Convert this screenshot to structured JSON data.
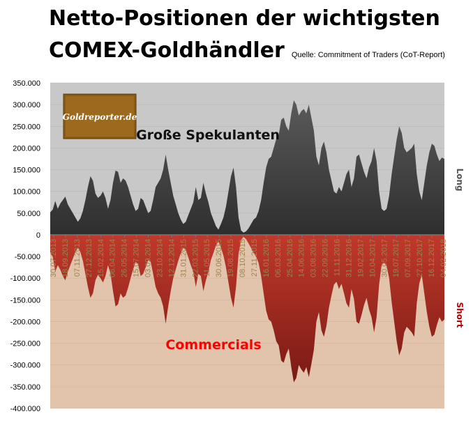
{
  "title_line1": "Netto-Positionen der wichtigsten",
  "title_line2": "COMEX-Goldhändler",
  "source": "Quelle: Commitment of Traders (CoT-Report)",
  "logo_text": "Goldreporter.de",
  "colors": {
    "top_bg": "#c8c8c8",
    "bottom_bg": "#e2c4ad",
    "spec_fill": "#3a3a3a",
    "comm_fill": "#a52a2a",
    "comm_label": "#ff0000",
    "short_label": "#c00000",
    "long_label": "#555555",
    "logo_bg": "#8b5a14",
    "tick_label": "#9a8450"
  },
  "chart_data": {
    "type": "area",
    "ylim": [
      -400000,
      350000
    ],
    "yticks": [
      "350.000",
      "300.000",
      "250.000",
      "200.000",
      "150.000",
      "100.000",
      "50.000",
      "0",
      "-50.000",
      "-100.000",
      "-150.000",
      "-200.000",
      "-250.000",
      "-300.000",
      "-350.000",
      "-400.000"
    ],
    "right_label_top": "Long",
    "right_label_bottom": "Short",
    "x_tick_labels": [
      "30.07.2013",
      "18.09.2013",
      "07.11.2013",
      "27.12.2013",
      "15.02.2014",
      "06.04.2014",
      "26.05.2014",
      "15.07.2014",
      "03.09.2014",
      "23.10.2014",
      "12.12.2014",
      "31.01.2015",
      "22.03.2015",
      "11.05.2015",
      "30.06.2015",
      "19.08.2015",
      "08.10.2015",
      "27.11.2015",
      "16.01.2016",
      "06.03.2016",
      "25.04.2016",
      "14.06.2016",
      "03.08.2016",
      "22.09.2016",
      "11.11.2016",
      "31.12.2016",
      "19.02.2017",
      "10.04.2017",
      "30.05.2017",
      "19.07.2017",
      "07.09.2017",
      "27.10.2017",
      "16.12.2017",
      "04.02.2018"
    ],
    "series": [
      {
        "name": "Große Spekulanten",
        "values": [
          52000,
          58000,
          78000,
          60000,
          72000,
          80000,
          88000,
          70000,
          60000,
          50000,
          40000,
          30000,
          38000,
          55000,
          80000,
          110000,
          135000,
          125000,
          95000,
          85000,
          90000,
          100000,
          85000,
          60000,
          80000,
          120000,
          148000,
          145000,
          120000,
          130000,
          125000,
          110000,
          90000,
          70000,
          55000,
          60000,
          85000,
          80000,
          65000,
          50000,
          55000,
          80000,
          110000,
          120000,
          130000,
          150000,
          185000,
          150000,
          120000,
          90000,
          70000,
          50000,
          35000,
          25000,
          30000,
          45000,
          60000,
          75000,
          110000,
          80000,
          85000,
          120000,
          95000,
          75000,
          50000,
          35000,
          20000,
          12000,
          25000,
          40000,
          65000,
          100000,
          135000,
          155000,
          110000,
          40000,
          10000,
          5000,
          8000,
          15000,
          25000,
          35000,
          40000,
          55000,
          80000,
          120000,
          155000,
          175000,
          180000,
          200000,
          220000,
          230000,
          265000,
          270000,
          250000,
          240000,
          280000,
          310000,
          300000,
          275000,
          285000,
          290000,
          280000,
          300000,
          270000,
          240000,
          180000,
          160000,
          200000,
          215000,
          190000,
          150000,
          125000,
          100000,
          95000,
          110000,
          100000,
          120000,
          140000,
          150000,
          110000,
          130000,
          180000,
          185000,
          165000,
          145000,
          130000,
          155000,
          170000,
          200000,
          170000,
          100000,
          60000,
          55000,
          60000,
          90000,
          140000,
          180000,
          220000,
          250000,
          235000,
          200000,
          190000,
          195000,
          200000,
          210000,
          140000,
          100000,
          80000,
          120000,
          160000,
          190000,
          210000,
          205000,
          185000,
          170000,
          178000,
          175000
        ],
        "color": "#3a3a3a"
      },
      {
        "name": "Commercials",
        "values": [
          -40000,
          -50000,
          -85000,
          -70000,
          -80000,
          -95000,
          -105000,
          -85000,
          -70000,
          -55000,
          -40000,
          -30000,
          -40000,
          -60000,
          -90000,
          -120000,
          -145000,
          -135000,
          -105000,
          -92000,
          -100000,
          -110000,
          -95000,
          -70000,
          -90000,
          -130000,
          -165000,
          -160000,
          -135000,
          -145000,
          -140000,
          -122000,
          -100000,
          -80000,
          -62000,
          -68000,
          -95000,
          -90000,
          -75000,
          -58000,
          -62000,
          -90000,
          -120000,
          -135000,
          -145000,
          -165000,
          -205000,
          -165000,
          -130000,
          -100000,
          -80000,
          -60000,
          -42000,
          -30000,
          -35000,
          -52000,
          -70000,
          -85000,
          -120000,
          -90000,
          -95000,
          -130000,
          -105000,
          -85000,
          -58000,
          -42000,
          -25000,
          -15000,
          -30000,
          -48000,
          -75000,
          -110000,
          -145000,
          -168000,
          -120000,
          -45000,
          -12000,
          -5000,
          -10000,
          -20000,
          -30000,
          -42000,
          -50000,
          -65000,
          -95000,
          -135000,
          -175000,
          -195000,
          -200000,
          -220000,
          -245000,
          -255000,
          -290000,
          -295000,
          -275000,
          -262000,
          -305000,
          -340000,
          -330000,
          -300000,
          -310000,
          -318000,
          -305000,
          -328000,
          -298000,
          -265000,
          -200000,
          -178000,
          -220000,
          -235000,
          -210000,
          -168000,
          -140000,
          -115000,
          -108000,
          -125000,
          -113000,
          -135000,
          -158000,
          -168000,
          -125000,
          -148000,
          -200000,
          -205000,
          -185000,
          -162000,
          -145000,
          -172000,
          -190000,
          -225000,
          -190000,
          -115000,
          -70000,
          -65000,
          -72000,
          -100000,
          -155000,
          -200000,
          -245000,
          -278000,
          -262000,
          -225000,
          -212000,
          -218000,
          -225000,
          -235000,
          -158000,
          -112000,
          -92000,
          -135000,
          -178000,
          -212000,
          -235000,
          -230000,
          -208000,
          -190000,
          -200000,
          -195000
        ],
        "color": "#a52a2a"
      }
    ]
  }
}
